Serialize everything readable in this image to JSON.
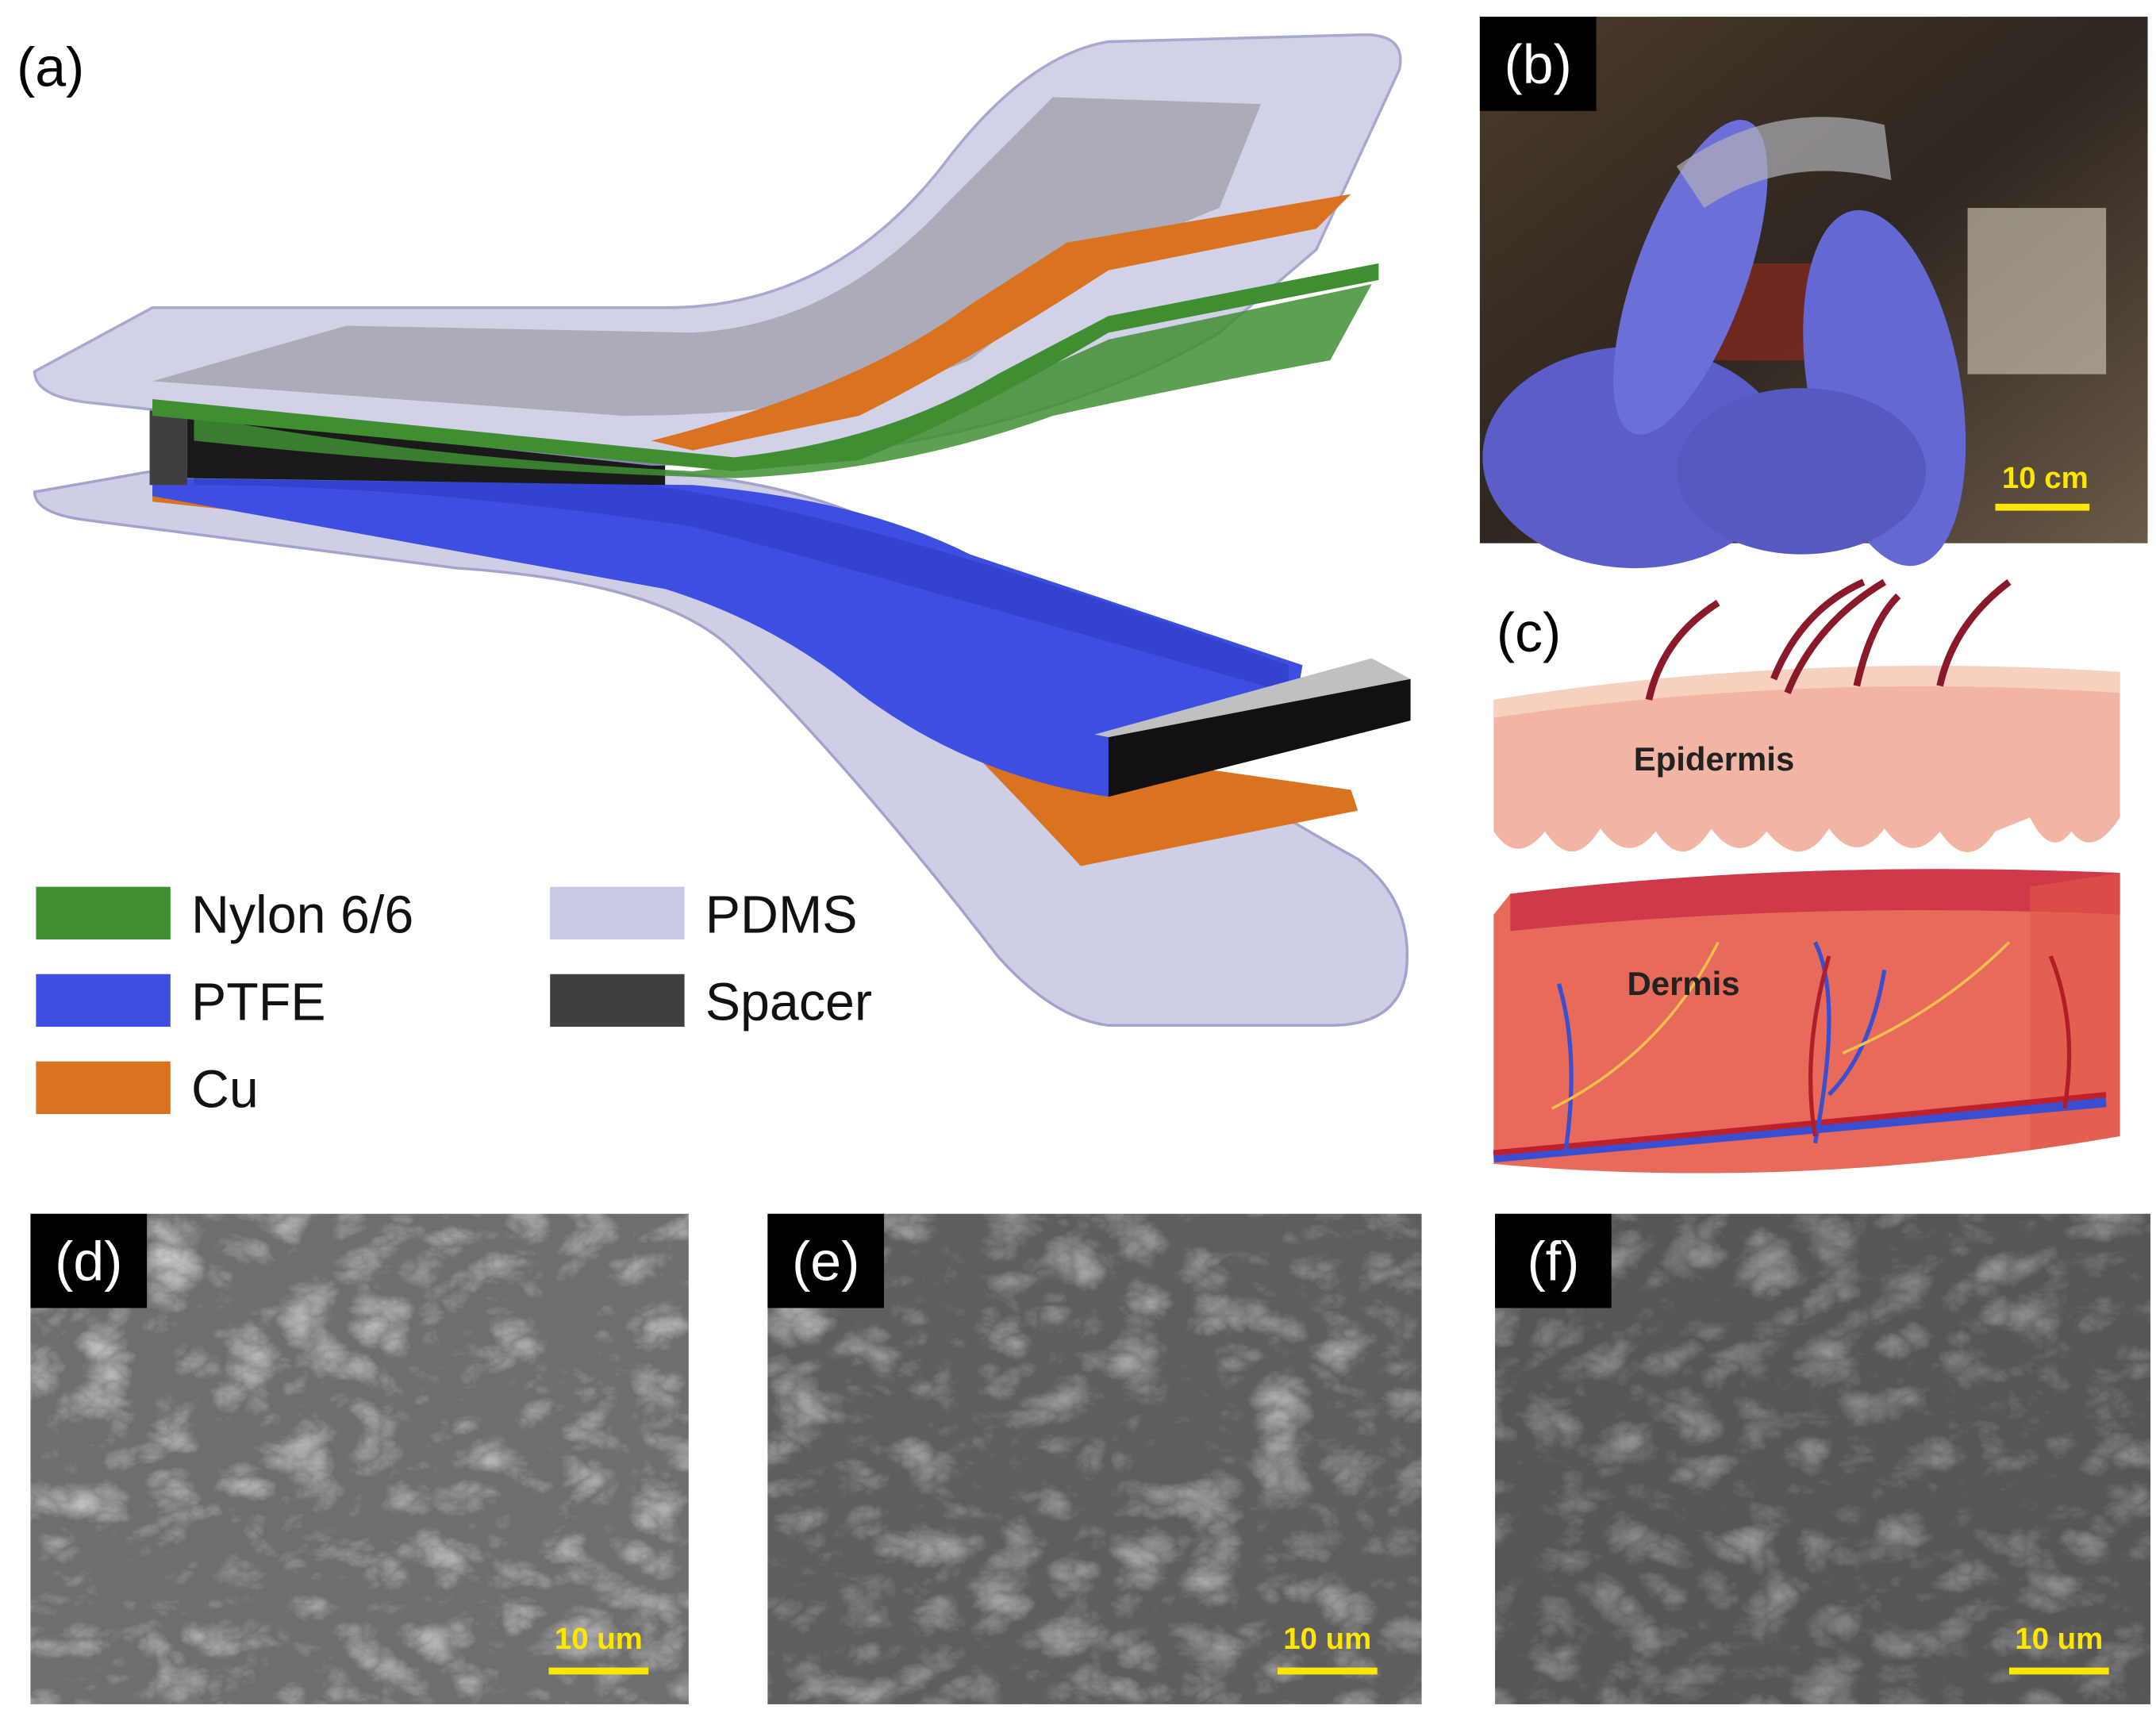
{
  "panel_a": {
    "label": "(a)",
    "legend": [
      {
        "name": "Nylon 6/6",
        "color": "#3f8f32"
      },
      {
        "name": "PTFE",
        "color": "#3d4fe0"
      },
      {
        "name": "Cu",
        "color": "#d9731f"
      },
      {
        "name": "PDMS",
        "color": "#c9c9e4"
      },
      {
        "name": "Spacer",
        "color": "#3f3f3f"
      }
    ]
  },
  "panel_b": {
    "label": "(b)",
    "scale_bar": "10 cm"
  },
  "panel_c": {
    "label": "(c)",
    "layers": [
      "Epidermis",
      "Dermis"
    ]
  },
  "panel_d": {
    "label": "(d)",
    "scale_bar": "10 um"
  },
  "panel_e": {
    "label": "(e)",
    "scale_bar": "10 um"
  },
  "panel_f": {
    "label": "(f)",
    "scale_bar": "10 um"
  }
}
